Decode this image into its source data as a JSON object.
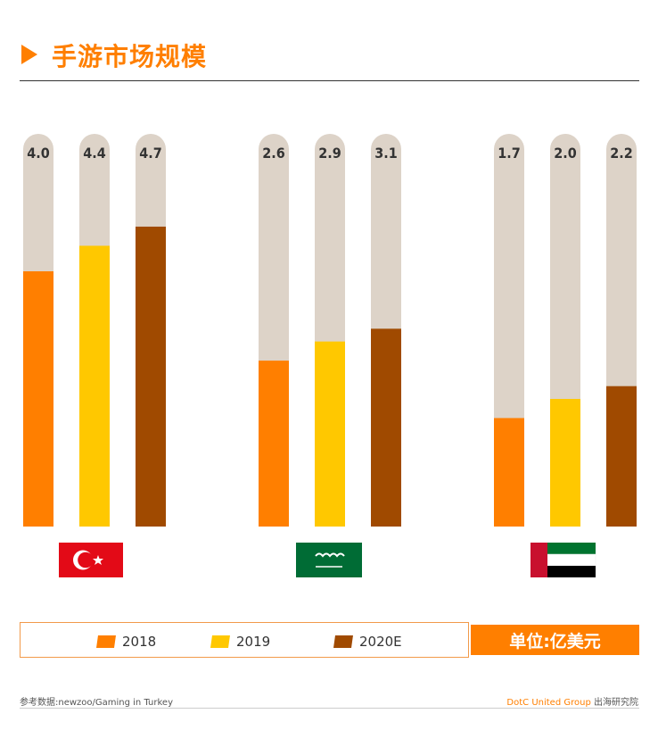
{
  "title": "手游市场规模",
  "unit_label": "单位:亿美元",
  "footer": {
    "source": "参考数据:newzoo/Gaming in Turkey",
    "brand": "DotC United Group",
    "brand_suffix": "出海研究院"
  },
  "chart_data": {
    "type": "bar",
    "categories": [
      "turkey-flag",
      "saudi-arabia-flag",
      "uae-flag"
    ],
    "series": [
      {
        "name": "2018",
        "values": [
          4.0,
          2.6,
          1.7
        ],
        "color": "#ff7f00"
      },
      {
        "name": "2019",
        "values": [
          4.4,
          2.9,
          2.0
        ],
        "color": "#ffc800"
      },
      {
        "name": "2020E",
        "values": [
          4.7,
          3.1,
          2.2
        ],
        "color": "#a04a00"
      }
    ],
    "data_labels": [
      [
        "4.0",
        "4.4",
        "4.7"
      ],
      [
        "2.6",
        "2.9",
        "3.1"
      ],
      [
        "1.7",
        "2.0",
        "2.2"
      ]
    ],
    "background_bar_color": "#ddd3c8",
    "legend": "bottom",
    "grid": false
  }
}
